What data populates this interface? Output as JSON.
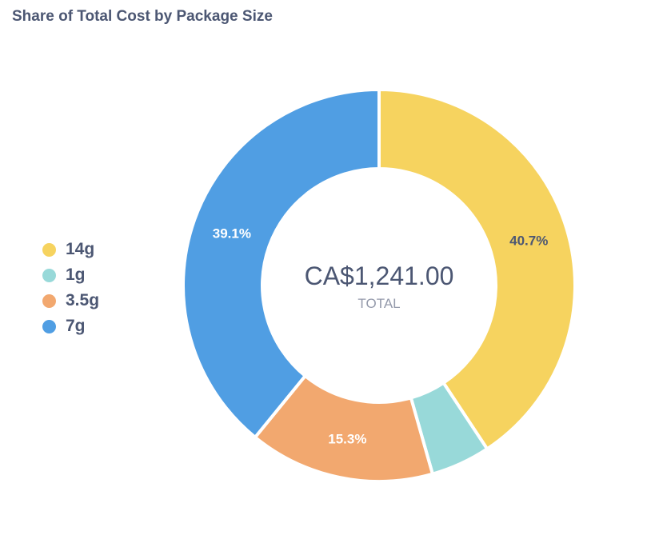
{
  "chart_data": {
    "type": "donut",
    "title": "Share of Total Cost by Package Size",
    "total_value": "CA$1,241.00",
    "total_caption": "TOTAL",
    "categories": [
      "14g",
      "1g",
      "3.5g",
      "7g"
    ],
    "values": [
      40.7,
      4.9,
      15.3,
      39.1
    ],
    "data_labels": [
      "40.7%",
      "",
      "15.3%",
      "39.1%"
    ],
    "colors": [
      "#F6D35F",
      "#98D9D9",
      "#F2A86F",
      "#509EE3"
    ],
    "legend_position": "left"
  }
}
